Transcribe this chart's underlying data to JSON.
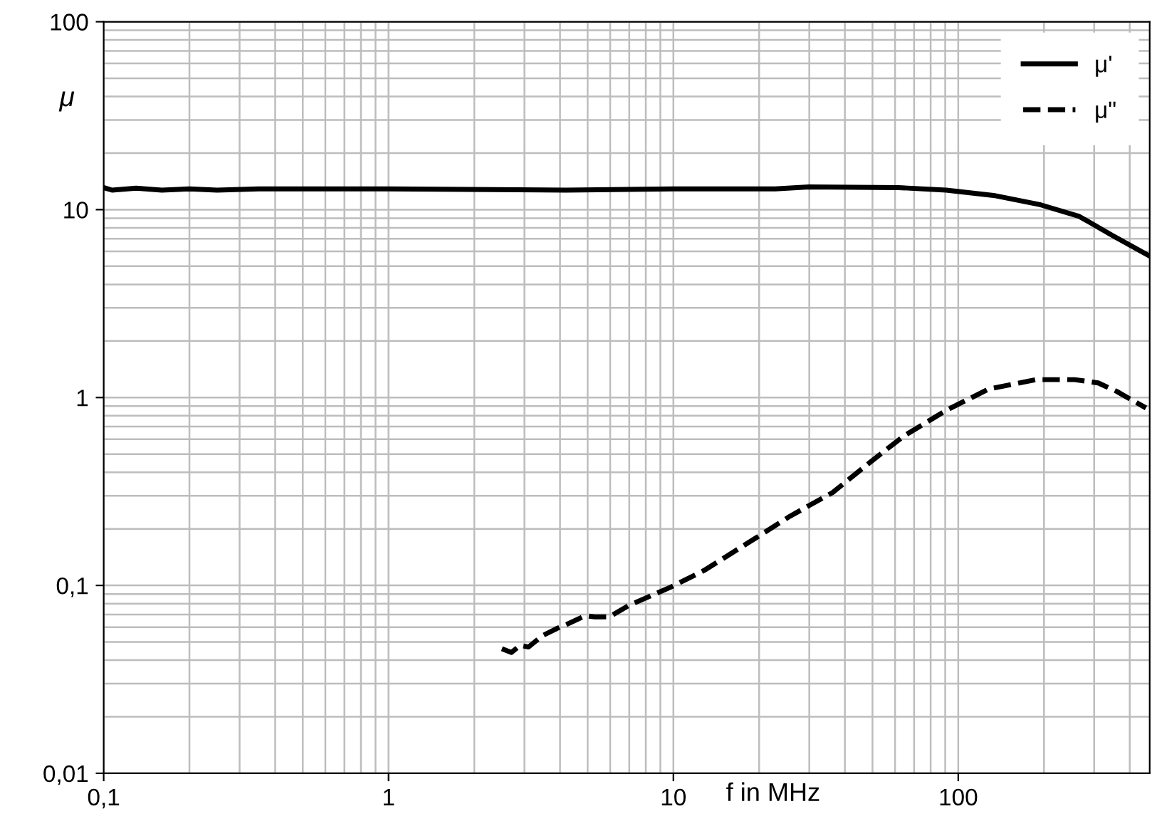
{
  "chart_data": {
    "type": "line",
    "xlabel": "f in MHz",
    "ylabel": "μ",
    "log": "xy",
    "xlim": [
      0.1,
      470
    ],
    "ylim": [
      0.01,
      100
    ],
    "xticks": [
      {
        "value": 0.1,
        "label": "0,1"
      },
      1,
      10,
      100
    ],
    "yticks": [
      {
        "value": 0.01,
        "label": "0,01"
      },
      {
        "value": 0.1,
        "label": "0,1"
      },
      1,
      10,
      100
    ],
    "grid": true,
    "legend": "top right",
    "marker": "none",
    "series": [
      {
        "name": "μ'",
        "color": "#000000",
        "line_style": "solid",
        "x": [
          0.1,
          0.107,
          0.13,
          0.16,
          0.2,
          0.25,
          0.35,
          1,
          4.2,
          10,
          22.8,
          29.9,
          61.7,
          90.8,
          133,
          195,
          266,
          347,
          466
        ],
        "values": [
          13.1,
          12.7,
          13.0,
          12.7,
          12.9,
          12.7,
          12.9,
          12.9,
          12.7,
          12.9,
          12.9,
          13.2,
          13.1,
          12.7,
          11.9,
          10.6,
          9.2,
          7.3,
          5.7
        ]
      },
      {
        "name": "μ\"",
        "color": "#000000",
        "line_style": "dashed",
        "x": [
          2.5,
          2.7,
          2.9,
          3.1,
          3.47,
          3.9,
          4.22,
          4.9,
          5.3,
          5.96,
          6.95,
          9.8,
          12.8,
          19.6,
          25.6,
          36.2,
          49.2,
          64.3,
          90.9,
          128,
          188,
          256,
          310,
          360,
          456
        ],
        "values": [
          0.046,
          0.044,
          0.048,
          0.047,
          0.054,
          0.059,
          0.062,
          0.069,
          0.068,
          0.068,
          0.078,
          0.098,
          0.12,
          0.18,
          0.233,
          0.312,
          0.454,
          0.623,
          0.856,
          1.11,
          1.245,
          1.245,
          1.196,
          1.078,
          0.88
        ]
      }
    ]
  }
}
